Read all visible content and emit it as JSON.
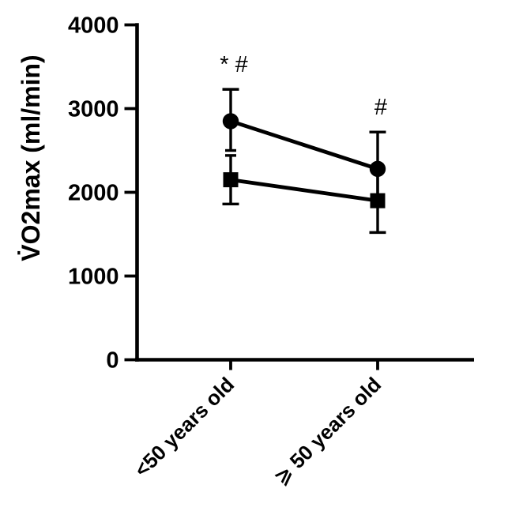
{
  "figure": {
    "background_color": "#ffffff",
    "ink_color": "#000000"
  },
  "chart_data": {
    "type": "line",
    "title": "",
    "xlabel": "",
    "ylabel": "V̇O2max (ml/min)",
    "ylim": [
      0,
      4000
    ],
    "yticks": [
      0,
      1000,
      2000,
      3000,
      4000
    ],
    "ytick_labels": [
      "0",
      "1000",
      "2000",
      "3000",
      "4000"
    ],
    "categories": [
      "<50 years old",
      "⩾ 50 years old"
    ],
    "grid": false,
    "legend": "none",
    "series": [
      {
        "name": "filled-circle-group",
        "marker": "circle",
        "color": "#000000",
        "values": [
          2850,
          2280
        ],
        "error_plus": [
          380,
          440
        ],
        "error_minus": [
          350,
          440
        ]
      },
      {
        "name": "filled-square-group",
        "marker": "square",
        "color": "#000000",
        "values": [
          2150,
          1900
        ],
        "error_plus": [
          290,
          380
        ],
        "error_minus": [
          290,
          380
        ]
      }
    ],
    "annotations": [
      {
        "text": "* #",
        "category_index": 0
      },
      {
        "text": "#",
        "category_index": 1
      }
    ]
  }
}
